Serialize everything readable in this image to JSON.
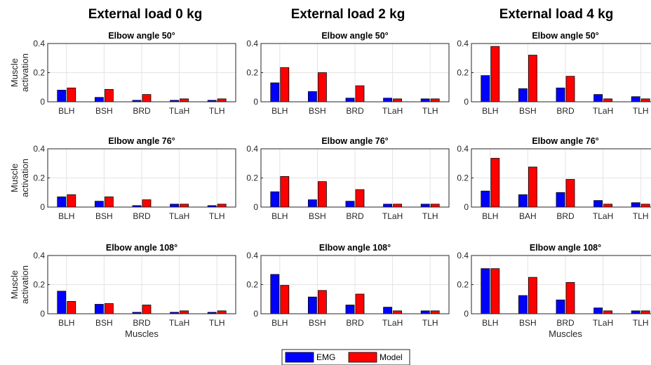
{
  "column_titles": [
    "External load 0 kg",
    "External load 2 kg",
    "External load 4 kg"
  ],
  "legend": [
    {
      "label": "EMG",
      "color": "#0000ff"
    },
    {
      "label": "Model",
      "color": "#ff0000"
    }
  ],
  "ylabel": "Muscle activation",
  "xlabel": "Muscles",
  "chart_data": [
    {
      "type": "bar",
      "title": "Elbow angle 50°",
      "categories": [
        "BLH",
        "BSH",
        "BRD",
        "TLaH",
        "TLH"
      ],
      "ylim": [
        0,
        0.4
      ],
      "yticks": [
        0,
        0.2,
        0.4
      ],
      "series": [
        {
          "name": "EMG",
          "values": [
            0.08,
            0.03,
            0.01,
            0.01,
            0.01
          ]
        },
        {
          "name": "Model",
          "values": [
            0.095,
            0.085,
            0.05,
            0.02,
            0.02
          ]
        }
      ]
    },
    {
      "type": "bar",
      "title": "Elbow angle 50°",
      "categories": [
        "BLH",
        "BSH",
        "BRD",
        "TLaH",
        "TLH"
      ],
      "ylim": [
        0,
        0.4
      ],
      "yticks": [
        0,
        0.2,
        0.4
      ],
      "series": [
        {
          "name": "EMG",
          "values": [
            0.13,
            0.07,
            0.025,
            0.025,
            0.02
          ]
        },
        {
          "name": "Model",
          "values": [
            0.235,
            0.2,
            0.11,
            0.02,
            0.02
          ]
        }
      ]
    },
    {
      "type": "bar",
      "title": "Elbow angle 50°",
      "categories": [
        "BLH",
        "BSH",
        "BRD",
        "TLaH",
        "TLH"
      ],
      "ylim": [
        0,
        0.4
      ],
      "yticks": [
        0,
        0.2,
        0.4
      ],
      "series": [
        {
          "name": "EMG",
          "values": [
            0.18,
            0.09,
            0.095,
            0.05,
            0.035
          ]
        },
        {
          "name": "Model",
          "values": [
            0.38,
            0.32,
            0.175,
            0.02,
            0.02
          ]
        }
      ]
    },
    {
      "type": "bar",
      "title": "Elbow angle 76°",
      "categories": [
        "BLH",
        "BSH",
        "BRD",
        "TLaH",
        "TLH"
      ],
      "ylim": [
        0,
        0.4
      ],
      "yticks": [
        0,
        0.2,
        0.4
      ],
      "series": [
        {
          "name": "EMG",
          "values": [
            0.07,
            0.04,
            0.01,
            0.02,
            0.01
          ]
        },
        {
          "name": "Model",
          "values": [
            0.085,
            0.07,
            0.05,
            0.02,
            0.02
          ]
        }
      ]
    },
    {
      "type": "bar",
      "title": "Elbow angle 76°",
      "categories": [
        "BLH",
        "BSH",
        "BRD",
        "TLaH",
        "TLH"
      ],
      "ylim": [
        0,
        0.4
      ],
      "yticks": [
        0,
        0.2,
        0.4
      ],
      "series": [
        {
          "name": "EMG",
          "values": [
            0.105,
            0.05,
            0.04,
            0.02,
            0.02
          ]
        },
        {
          "name": "Model",
          "values": [
            0.21,
            0.175,
            0.12,
            0.02,
            0.02
          ]
        }
      ]
    },
    {
      "type": "bar",
      "title": "Elbow angle 76°",
      "categories": [
        "BLH",
        "BAH",
        "BRD",
        "TLaH",
        "TLH"
      ],
      "ylim": [
        0,
        0.4
      ],
      "yticks": [
        0,
        0.2,
        0.4
      ],
      "series": [
        {
          "name": "EMG",
          "values": [
            0.11,
            0.085,
            0.1,
            0.045,
            0.03
          ]
        },
        {
          "name": "Model",
          "values": [
            0.335,
            0.275,
            0.19,
            0.02,
            0.02
          ]
        }
      ]
    },
    {
      "type": "bar",
      "title": "Elbow angle 108°",
      "categories": [
        "BLH",
        "BSH",
        "BRD",
        "TLaH",
        "TLH"
      ],
      "ylim": [
        0,
        0.4
      ],
      "yticks": [
        0,
        0.2,
        0.4
      ],
      "series": [
        {
          "name": "EMG",
          "values": [
            0.155,
            0.065,
            0.01,
            0.01,
            0.01
          ]
        },
        {
          "name": "Model",
          "values": [
            0.085,
            0.07,
            0.06,
            0.02,
            0.02
          ]
        }
      ]
    },
    {
      "type": "bar",
      "title": "Elbow angle 108°",
      "categories": [
        "BLH",
        "BSH",
        "BRD",
        "TLaH",
        "TLH"
      ],
      "ylim": [
        0,
        0.4
      ],
      "yticks": [
        0,
        0.2,
        0.4
      ],
      "series": [
        {
          "name": "EMG",
          "values": [
            0.27,
            0.115,
            0.06,
            0.045,
            0.02
          ]
        },
        {
          "name": "Model",
          "values": [
            0.195,
            0.16,
            0.135,
            0.02,
            0.02
          ]
        }
      ]
    },
    {
      "type": "bar",
      "title": "Elbow angle 108°",
      "categories": [
        "BLH",
        "BSH",
        "BRD",
        "TLaH",
        "TLH"
      ],
      "ylim": [
        0,
        0.4
      ],
      "yticks": [
        0,
        0.2,
        0.4
      ],
      "series": [
        {
          "name": "EMG",
          "values": [
            0.31,
            0.125,
            0.095,
            0.04,
            0.02
          ]
        },
        {
          "name": "Model",
          "values": [
            0.31,
            0.25,
            0.215,
            0.02,
            0.02
          ]
        }
      ]
    }
  ]
}
